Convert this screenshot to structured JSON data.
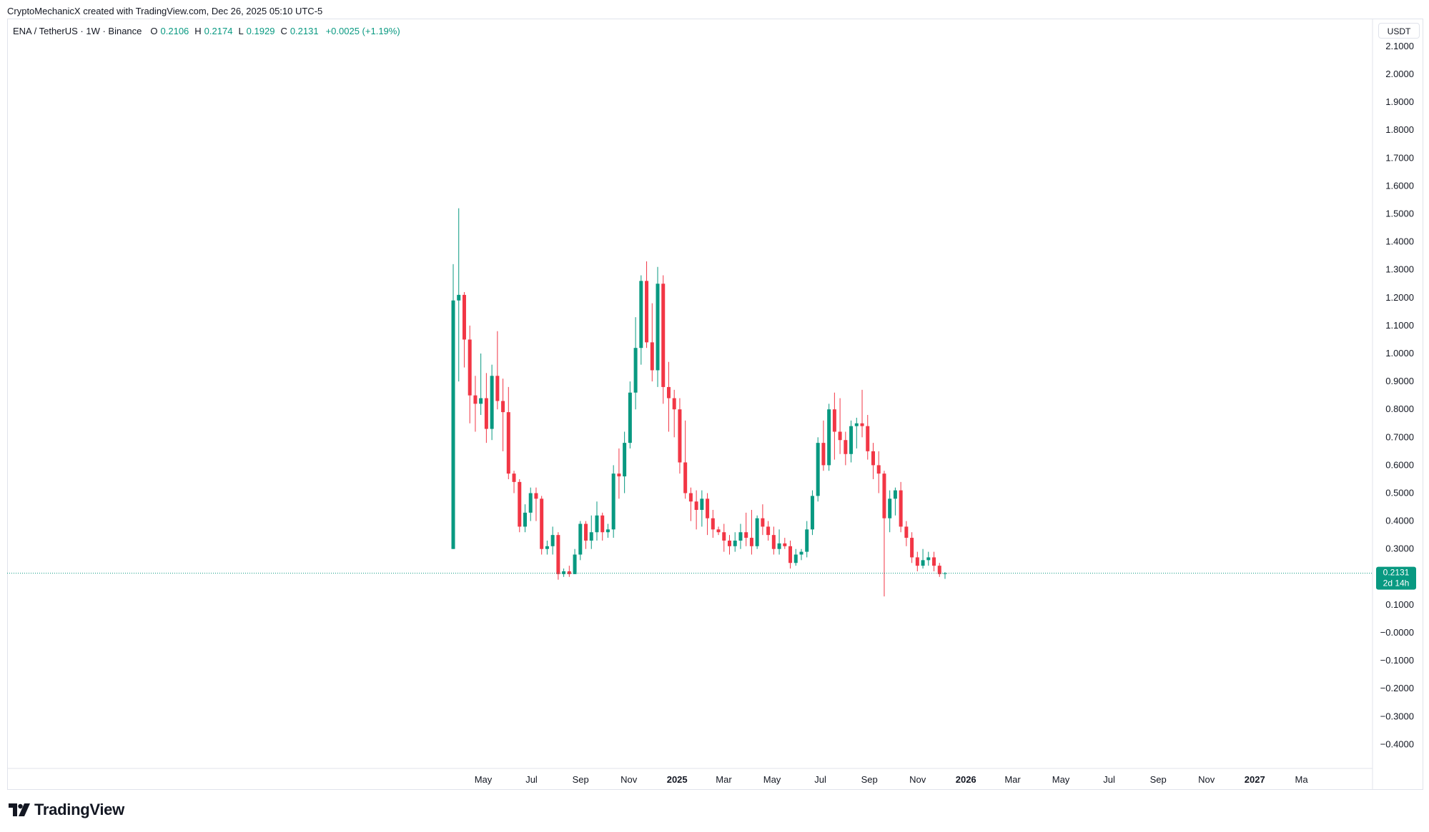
{
  "attribution": "CryptoMechanicX created with TradingView.com, Dec 26, 2025 05:10 UTC-5",
  "legend": {
    "symbol": "ENA / TetherUS · 1W · Binance",
    "o_label": "O",
    "o": "0.2106",
    "h_label": "H",
    "h": "0.2174",
    "l_label": "L",
    "l": "0.1929",
    "c_label": "C",
    "c": "0.2131",
    "change": "+0.0025 (+1.19%)"
  },
  "currency": "USDT",
  "price_tag": {
    "price": "0.2131",
    "countdown": "2d 14h"
  },
  "logo_text": "TradingView",
  "colors": {
    "up": "#089981",
    "down": "#f23645",
    "grid": "#e0e3eb",
    "text": "#131722"
  },
  "chart_data": {
    "type": "candlestick",
    "interval": "1W",
    "ylim": [
      -0.45,
      2.15
    ],
    "y_ticks": [
      "2.1000",
      "2.0000",
      "1.9000",
      "1.8000",
      "1.7000",
      "1.6000",
      "1.5000",
      "1.4000",
      "1.3000",
      "1.2000",
      "1.1000",
      "1.0000",
      "0.9000",
      "0.8000",
      "0.7000",
      "0.6000",
      "0.5000",
      "0.4000",
      "0.3000",
      "0.1000",
      "−0.0000",
      "−0.1000",
      "−0.2000",
      "−0.3000",
      "−0.4000"
    ],
    "x_ticks": [
      {
        "label": "May",
        "date": "2024-05-01",
        "bold": false
      },
      {
        "label": "Jul",
        "date": "2024-07-01",
        "bold": false
      },
      {
        "label": "Sep",
        "date": "2024-09-01",
        "bold": false
      },
      {
        "label": "Nov",
        "date": "2024-11-01",
        "bold": false
      },
      {
        "label": "2025",
        "date": "2025-01-01",
        "bold": true
      },
      {
        "label": "Mar",
        "date": "2025-03-01",
        "bold": false
      },
      {
        "label": "May",
        "date": "2025-05-01",
        "bold": false
      },
      {
        "label": "Jul",
        "date": "2025-07-01",
        "bold": false
      },
      {
        "label": "Sep",
        "date": "2025-09-01",
        "bold": false
      },
      {
        "label": "Nov",
        "date": "2025-11-01",
        "bold": false
      },
      {
        "label": "2026",
        "date": "2026-01-01",
        "bold": true
      },
      {
        "label": "Mar",
        "date": "2026-03-01",
        "bold": false
      },
      {
        "label": "May",
        "date": "2026-05-01",
        "bold": false
      },
      {
        "label": "Jul",
        "date": "2026-07-01",
        "bold": false
      },
      {
        "label": "Sep",
        "date": "2026-09-01",
        "bold": false
      },
      {
        "label": "Nov",
        "date": "2026-11-01",
        "bold": false
      },
      {
        "label": "2027",
        "date": "2027-01-01",
        "bold": true
      },
      {
        "label": "Ma",
        "date": "2027-03-01",
        "bold": false
      }
    ],
    "last_price": 0.2131,
    "candles": [
      [
        0.3,
        1.32,
        0.3,
        1.19
      ],
      [
        1.19,
        1.52,
        0.9,
        1.21
      ],
      [
        1.21,
        1.22,
        0.95,
        1.05
      ],
      [
        1.05,
        1.1,
        0.75,
        0.85
      ],
      [
        0.85,
        0.92,
        0.72,
        0.82
      ],
      [
        0.82,
        1.0,
        0.78,
        0.84
      ],
      [
        0.84,
        0.93,
        0.68,
        0.73
      ],
      [
        0.73,
        0.96,
        0.69,
        0.92
      ],
      [
        0.92,
        1.08,
        0.8,
        0.83
      ],
      [
        0.83,
        0.91,
        0.65,
        0.79
      ],
      [
        0.79,
        0.88,
        0.55,
        0.57
      ],
      [
        0.57,
        0.58,
        0.5,
        0.54
      ],
      [
        0.54,
        0.55,
        0.36,
        0.38
      ],
      [
        0.38,
        0.46,
        0.36,
        0.43
      ],
      [
        0.43,
        0.52,
        0.4,
        0.5
      ],
      [
        0.5,
        0.52,
        0.4,
        0.48
      ],
      [
        0.48,
        0.49,
        0.28,
        0.3
      ],
      [
        0.3,
        0.33,
        0.28,
        0.31
      ],
      [
        0.31,
        0.38,
        0.28,
        0.35
      ],
      [
        0.35,
        0.36,
        0.19,
        0.21
      ],
      [
        0.21,
        0.23,
        0.2,
        0.22
      ],
      [
        0.22,
        0.24,
        0.2,
        0.21
      ],
      [
        0.21,
        0.3,
        0.21,
        0.28
      ],
      [
        0.28,
        0.4,
        0.26,
        0.39
      ],
      [
        0.39,
        0.4,
        0.3,
        0.33
      ],
      [
        0.33,
        0.42,
        0.3,
        0.36
      ],
      [
        0.36,
        0.47,
        0.33,
        0.42
      ],
      [
        0.42,
        0.43,
        0.33,
        0.36
      ],
      [
        0.36,
        0.39,
        0.34,
        0.37
      ],
      [
        0.37,
        0.6,
        0.34,
        0.57
      ],
      [
        0.57,
        0.66,
        0.48,
        0.56
      ],
      [
        0.56,
        0.72,
        0.5,
        0.68
      ],
      [
        0.68,
        0.9,
        0.66,
        0.86
      ],
      [
        0.86,
        1.13,
        0.8,
        1.02
      ],
      [
        1.02,
        1.28,
        0.96,
        1.26
      ],
      [
        1.26,
        1.33,
        1.02,
        1.04
      ],
      [
        1.04,
        1.18,
        0.9,
        0.94
      ],
      [
        0.94,
        1.31,
        0.88,
        1.25
      ],
      [
        1.25,
        1.28,
        0.82,
        0.88
      ],
      [
        0.88,
        0.97,
        0.72,
        0.84
      ],
      [
        0.84,
        0.87,
        0.7,
        0.8
      ],
      [
        0.8,
        0.84,
        0.57,
        0.61
      ],
      [
        0.61,
        0.76,
        0.48,
        0.5
      ],
      [
        0.5,
        0.52,
        0.4,
        0.47
      ],
      [
        0.47,
        0.51,
        0.37,
        0.44
      ],
      [
        0.44,
        0.51,
        0.38,
        0.48
      ],
      [
        0.48,
        0.5,
        0.35,
        0.41
      ],
      [
        0.41,
        0.44,
        0.34,
        0.37
      ],
      [
        0.37,
        0.38,
        0.35,
        0.36
      ],
      [
        0.36,
        0.39,
        0.29,
        0.33
      ],
      [
        0.33,
        0.35,
        0.28,
        0.31
      ],
      [
        0.31,
        0.36,
        0.29,
        0.33
      ],
      [
        0.33,
        0.39,
        0.3,
        0.36
      ],
      [
        0.36,
        0.43,
        0.31,
        0.34
      ],
      [
        0.34,
        0.44,
        0.28,
        0.31
      ],
      [
        0.31,
        0.42,
        0.3,
        0.41
      ],
      [
        0.41,
        0.46,
        0.35,
        0.38
      ],
      [
        0.38,
        0.4,
        0.33,
        0.35
      ],
      [
        0.35,
        0.38,
        0.28,
        0.3
      ],
      [
        0.3,
        0.37,
        0.28,
        0.32
      ],
      [
        0.32,
        0.34,
        0.3,
        0.31
      ],
      [
        0.31,
        0.33,
        0.23,
        0.25
      ],
      [
        0.25,
        0.3,
        0.24,
        0.28
      ],
      [
        0.28,
        0.3,
        0.26,
        0.29
      ],
      [
        0.29,
        0.4,
        0.27,
        0.37
      ],
      [
        0.37,
        0.51,
        0.35,
        0.49
      ],
      [
        0.49,
        0.7,
        0.47,
        0.68
      ],
      [
        0.68,
        0.76,
        0.58,
        0.6
      ],
      [
        0.6,
        0.82,
        0.58,
        0.8
      ],
      [
        0.8,
        0.86,
        0.62,
        0.72
      ],
      [
        0.72,
        0.84,
        0.64,
        0.69
      ],
      [
        0.69,
        0.72,
        0.6,
        0.64
      ],
      [
        0.64,
        0.76,
        0.61,
        0.74
      ],
      [
        0.74,
        0.77,
        0.66,
        0.75
      ],
      [
        0.75,
        0.87,
        0.7,
        0.74
      ],
      [
        0.74,
        0.78,
        0.62,
        0.65
      ],
      [
        0.65,
        0.68,
        0.55,
        0.6
      ],
      [
        0.6,
        0.65,
        0.5,
        0.57
      ],
      [
        0.57,
        0.58,
        0.13,
        0.41
      ],
      [
        0.41,
        0.51,
        0.36,
        0.48
      ],
      [
        0.48,
        0.52,
        0.42,
        0.51
      ],
      [
        0.51,
        0.54,
        0.36,
        0.38
      ],
      [
        0.38,
        0.4,
        0.31,
        0.34
      ],
      [
        0.34,
        0.36,
        0.25,
        0.27
      ],
      [
        0.27,
        0.29,
        0.22,
        0.24
      ],
      [
        0.24,
        0.3,
        0.23,
        0.26
      ],
      [
        0.26,
        0.29,
        0.24,
        0.27
      ],
      [
        0.27,
        0.29,
        0.22,
        0.24
      ],
      [
        0.24,
        0.25,
        0.2,
        0.21
      ],
      [
        0.2106,
        0.2174,
        0.1929,
        0.2131
      ]
    ]
  }
}
